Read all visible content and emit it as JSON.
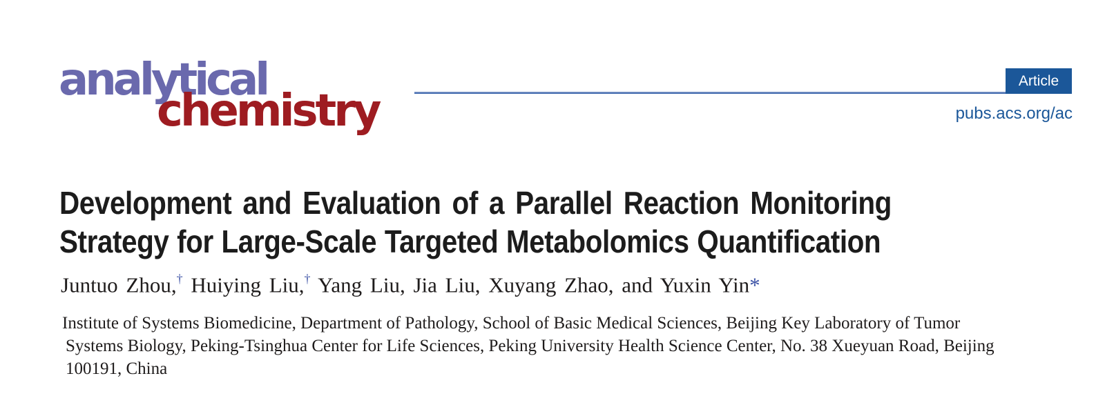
{
  "masthead": {
    "logo": {
      "word1": "analytical",
      "word2": "chemistry",
      "word1_color": "#6A69AD",
      "word2_color": "#9E1C21"
    },
    "badge": {
      "label": "Article",
      "color": "#1B5799"
    },
    "site_link": "pubs.acs.org/ac",
    "link_color": "#1B5799"
  },
  "article": {
    "title_line1": "Development and Evaluation of a Parallel Reaction Monitoring",
    "title_line2": "Strategy for Large-Scale Targeted Metabolomics Quantification",
    "authors": [
      {
        "name": "Juntuo Zhou,",
        "marker": "†"
      },
      {
        "name": "Huiying Liu,",
        "marker": "†"
      },
      {
        "name": "Yang Liu, Jia Liu, Xuyang Zhao, and Yuxin Yin",
        "marker": "*"
      }
    ],
    "marker_color": "#3D53A6",
    "affiliation_line1": "Institute of Systems Biomedicine, Department of Pathology, School of Basic Medical Sciences, Beijing Key Laboratory of Tumor",
    "affiliation_line2": "Systems Biology, Peking-Tsinghua Center for Life Sciences, Peking University Health Science Center, No. 38 Xueyuan Road, Beijing",
    "affiliation_line3": "100191, China"
  }
}
